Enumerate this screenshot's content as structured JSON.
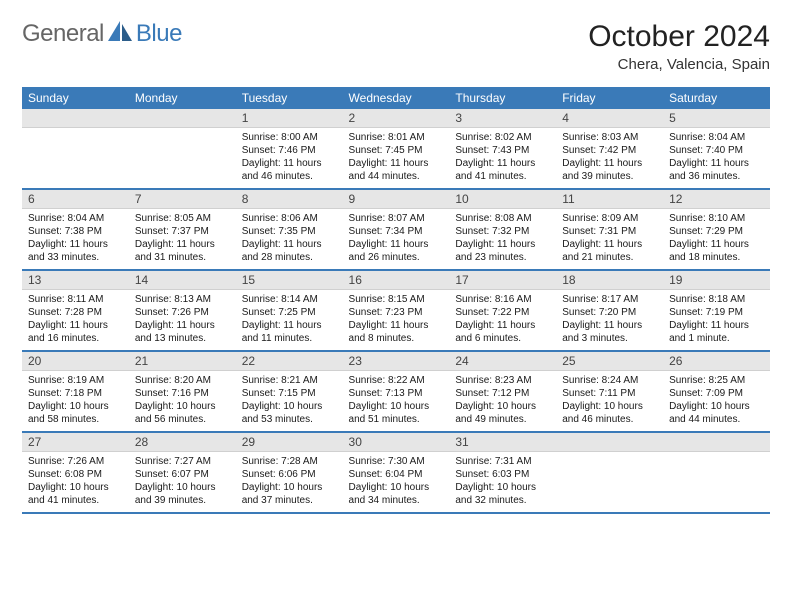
{
  "brand": {
    "part1": "General",
    "part2": "Blue"
  },
  "title": "October 2024",
  "location": "Chera, Valencia, Spain",
  "colors": {
    "header_bg": "#3a7ab8",
    "daynum_bg": "#e6e6e6",
    "row_divider": "#3a7ab8",
    "text": "#1a1a1a",
    "logo_accent": "#3a7ab8"
  },
  "typography": {
    "title_fontsize": 30,
    "location_fontsize": 15,
    "dow_fontsize": 12,
    "cell_fontsize": 10
  },
  "days_of_week": [
    "Sunday",
    "Monday",
    "Tuesday",
    "Wednesday",
    "Thursday",
    "Friday",
    "Saturday"
  ],
  "weeks": [
    [
      {
        "n": "",
        "sunrise": "",
        "sunset": "",
        "daylight": ""
      },
      {
        "n": "",
        "sunrise": "",
        "sunset": "",
        "daylight": ""
      },
      {
        "n": "1",
        "sunrise": "Sunrise: 8:00 AM",
        "sunset": "Sunset: 7:46 PM",
        "daylight": "Daylight: 11 hours and 46 minutes."
      },
      {
        "n": "2",
        "sunrise": "Sunrise: 8:01 AM",
        "sunset": "Sunset: 7:45 PM",
        "daylight": "Daylight: 11 hours and 44 minutes."
      },
      {
        "n": "3",
        "sunrise": "Sunrise: 8:02 AM",
        "sunset": "Sunset: 7:43 PM",
        "daylight": "Daylight: 11 hours and 41 minutes."
      },
      {
        "n": "4",
        "sunrise": "Sunrise: 8:03 AM",
        "sunset": "Sunset: 7:42 PM",
        "daylight": "Daylight: 11 hours and 39 minutes."
      },
      {
        "n": "5",
        "sunrise": "Sunrise: 8:04 AM",
        "sunset": "Sunset: 7:40 PM",
        "daylight": "Daylight: 11 hours and 36 minutes."
      }
    ],
    [
      {
        "n": "6",
        "sunrise": "Sunrise: 8:04 AM",
        "sunset": "Sunset: 7:38 PM",
        "daylight": "Daylight: 11 hours and 33 minutes."
      },
      {
        "n": "7",
        "sunrise": "Sunrise: 8:05 AM",
        "sunset": "Sunset: 7:37 PM",
        "daylight": "Daylight: 11 hours and 31 minutes."
      },
      {
        "n": "8",
        "sunrise": "Sunrise: 8:06 AM",
        "sunset": "Sunset: 7:35 PM",
        "daylight": "Daylight: 11 hours and 28 minutes."
      },
      {
        "n": "9",
        "sunrise": "Sunrise: 8:07 AM",
        "sunset": "Sunset: 7:34 PM",
        "daylight": "Daylight: 11 hours and 26 minutes."
      },
      {
        "n": "10",
        "sunrise": "Sunrise: 8:08 AM",
        "sunset": "Sunset: 7:32 PM",
        "daylight": "Daylight: 11 hours and 23 minutes."
      },
      {
        "n": "11",
        "sunrise": "Sunrise: 8:09 AM",
        "sunset": "Sunset: 7:31 PM",
        "daylight": "Daylight: 11 hours and 21 minutes."
      },
      {
        "n": "12",
        "sunrise": "Sunrise: 8:10 AM",
        "sunset": "Sunset: 7:29 PM",
        "daylight": "Daylight: 11 hours and 18 minutes."
      }
    ],
    [
      {
        "n": "13",
        "sunrise": "Sunrise: 8:11 AM",
        "sunset": "Sunset: 7:28 PM",
        "daylight": "Daylight: 11 hours and 16 minutes."
      },
      {
        "n": "14",
        "sunrise": "Sunrise: 8:13 AM",
        "sunset": "Sunset: 7:26 PM",
        "daylight": "Daylight: 11 hours and 13 minutes."
      },
      {
        "n": "15",
        "sunrise": "Sunrise: 8:14 AM",
        "sunset": "Sunset: 7:25 PM",
        "daylight": "Daylight: 11 hours and 11 minutes."
      },
      {
        "n": "16",
        "sunrise": "Sunrise: 8:15 AM",
        "sunset": "Sunset: 7:23 PM",
        "daylight": "Daylight: 11 hours and 8 minutes."
      },
      {
        "n": "17",
        "sunrise": "Sunrise: 8:16 AM",
        "sunset": "Sunset: 7:22 PM",
        "daylight": "Daylight: 11 hours and 6 minutes."
      },
      {
        "n": "18",
        "sunrise": "Sunrise: 8:17 AM",
        "sunset": "Sunset: 7:20 PM",
        "daylight": "Daylight: 11 hours and 3 minutes."
      },
      {
        "n": "19",
        "sunrise": "Sunrise: 8:18 AM",
        "sunset": "Sunset: 7:19 PM",
        "daylight": "Daylight: 11 hours and 1 minute."
      }
    ],
    [
      {
        "n": "20",
        "sunrise": "Sunrise: 8:19 AM",
        "sunset": "Sunset: 7:18 PM",
        "daylight": "Daylight: 10 hours and 58 minutes."
      },
      {
        "n": "21",
        "sunrise": "Sunrise: 8:20 AM",
        "sunset": "Sunset: 7:16 PM",
        "daylight": "Daylight: 10 hours and 56 minutes."
      },
      {
        "n": "22",
        "sunrise": "Sunrise: 8:21 AM",
        "sunset": "Sunset: 7:15 PM",
        "daylight": "Daylight: 10 hours and 53 minutes."
      },
      {
        "n": "23",
        "sunrise": "Sunrise: 8:22 AM",
        "sunset": "Sunset: 7:13 PM",
        "daylight": "Daylight: 10 hours and 51 minutes."
      },
      {
        "n": "24",
        "sunrise": "Sunrise: 8:23 AM",
        "sunset": "Sunset: 7:12 PM",
        "daylight": "Daylight: 10 hours and 49 minutes."
      },
      {
        "n": "25",
        "sunrise": "Sunrise: 8:24 AM",
        "sunset": "Sunset: 7:11 PM",
        "daylight": "Daylight: 10 hours and 46 minutes."
      },
      {
        "n": "26",
        "sunrise": "Sunrise: 8:25 AM",
        "sunset": "Sunset: 7:09 PM",
        "daylight": "Daylight: 10 hours and 44 minutes."
      }
    ],
    [
      {
        "n": "27",
        "sunrise": "Sunrise: 7:26 AM",
        "sunset": "Sunset: 6:08 PM",
        "daylight": "Daylight: 10 hours and 41 minutes."
      },
      {
        "n": "28",
        "sunrise": "Sunrise: 7:27 AM",
        "sunset": "Sunset: 6:07 PM",
        "daylight": "Daylight: 10 hours and 39 minutes."
      },
      {
        "n": "29",
        "sunrise": "Sunrise: 7:28 AM",
        "sunset": "Sunset: 6:06 PM",
        "daylight": "Daylight: 10 hours and 37 minutes."
      },
      {
        "n": "30",
        "sunrise": "Sunrise: 7:30 AM",
        "sunset": "Sunset: 6:04 PM",
        "daylight": "Daylight: 10 hours and 34 minutes."
      },
      {
        "n": "31",
        "sunrise": "Sunrise: 7:31 AM",
        "sunset": "Sunset: 6:03 PM",
        "daylight": "Daylight: 10 hours and 32 minutes."
      },
      {
        "n": "",
        "sunrise": "",
        "sunset": "",
        "daylight": ""
      },
      {
        "n": "",
        "sunrise": "",
        "sunset": "",
        "daylight": ""
      }
    ]
  ]
}
